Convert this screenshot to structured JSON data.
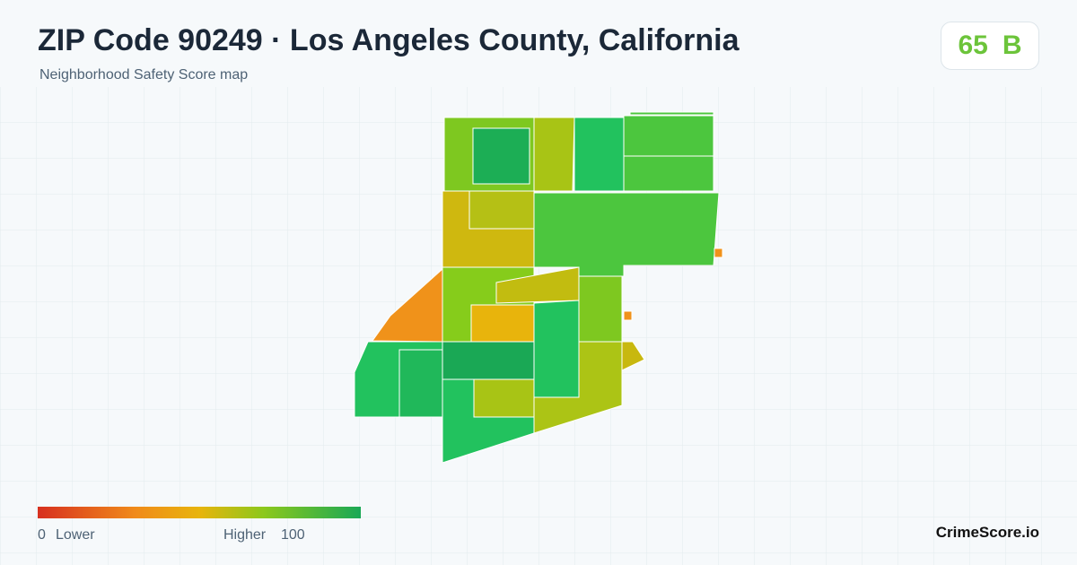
{
  "header": {
    "title": "ZIP Code 90249 · Los Angeles County, California",
    "subtitle": "Neighborhood Safety Score map"
  },
  "score": {
    "value": 65,
    "grade": "B"
  },
  "legend": {
    "min": 0,
    "min_label": "Lower",
    "max_label": "Higher",
    "max": 100
  },
  "footer": {
    "brand": "CrimeScore.io"
  }
}
